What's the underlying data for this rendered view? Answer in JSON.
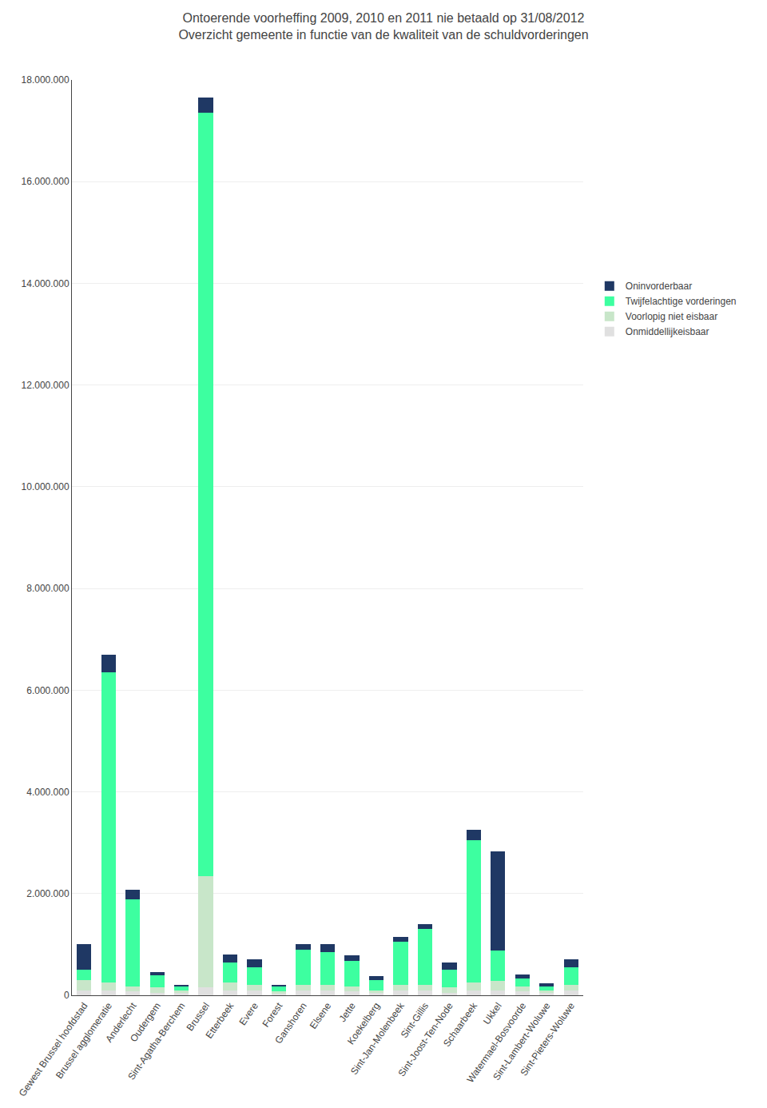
{
  "chart_data": {
    "type": "bar",
    "stacked": true,
    "title": "Ontoerende voorheffing 2009, 2010 en 2011 nie betaald op 31/08/2012",
    "subtitle": "Overzicht gemeente in functie van de kwaliteit van de schuldvorderingen",
    "categories": [
      "Gewest Brussel hoofdstad",
      "Brussel agglomeratie",
      "Anderlecht",
      "Oudergem",
      "Sint-Agatha-Berchem",
      "Brussel",
      "Etterbeek",
      "Evere",
      "Forest",
      "Ganshoren",
      "Elsene",
      "Jette",
      "Koekelberg",
      "Sint-Jan-Molenbeek",
      "Sint-Gillis",
      "Sint-Joost-Ten-Node",
      "Schaarbeek",
      "Ukkel",
      "Watermael-Bosvoorde",
      "Sint-Lambert-Woluwe",
      "Sint-Pieters-Woluwe"
    ],
    "series": [
      {
        "name": "Onmiddellijkeisbaar",
        "color": "#E0E0E0",
        "values": [
          100000,
          100000,
          80000,
          50000,
          50000,
          150000,
          100000,
          100000,
          30000,
          100000,
          100000,
          80000,
          50000,
          100000,
          100000,
          50000,
          100000,
          100000,
          80000,
          50000,
          100000
        ]
      },
      {
        "name": "Voorlopig niet eisbaar",
        "color": "#C8E6C9",
        "values": [
          200000,
          150000,
          100000,
          100000,
          50000,
          2200000,
          150000,
          100000,
          50000,
          100000,
          100000,
          100000,
          50000,
          100000,
          100000,
          100000,
          150000,
          180000,
          100000,
          50000,
          100000
        ]
      },
      {
        "name": "Twijfelachtige vorderingen",
        "color": "#3DFFA0",
        "values": [
          200000,
          6100000,
          1700000,
          250000,
          80000,
          15000000,
          400000,
          350000,
          100000,
          700000,
          650000,
          500000,
          200000,
          850000,
          1100000,
          350000,
          2800000,
          600000,
          150000,
          80000,
          350000
        ]
      },
      {
        "name": "Oninvorderbaar",
        "color": "#1F3864",
        "values": [
          500000,
          350000,
          200000,
          50000,
          30000,
          300000,
          150000,
          150000,
          30000,
          100000,
          150000,
          100000,
          80000,
          100000,
          100000,
          150000,
          200000,
          1950000,
          80000,
          50000,
          150000
        ]
      }
    ],
    "ylim": [
      0,
      18000000
    ],
    "yticks": [
      0,
      {
        "value": 2000000,
        "label": "2.000.000"
      },
      {
        "value": 4000000,
        "label": "4.000.000"
      },
      {
        "value": 6000000,
        "label": "6.000.000"
      },
      {
        "value": 8000000,
        "label": "8.000.000"
      },
      {
        "value": 10000000,
        "label": "10.000.000"
      },
      {
        "value": 12000000,
        "label": "12.000.000"
      },
      {
        "value": 14000000,
        "label": "14.000.000"
      },
      {
        "value": 16000000,
        "label": "16.000.000"
      },
      {
        "value": 18000000,
        "label": "18.000.000"
      }
    ],
    "grid": true,
    "legend": "right"
  }
}
